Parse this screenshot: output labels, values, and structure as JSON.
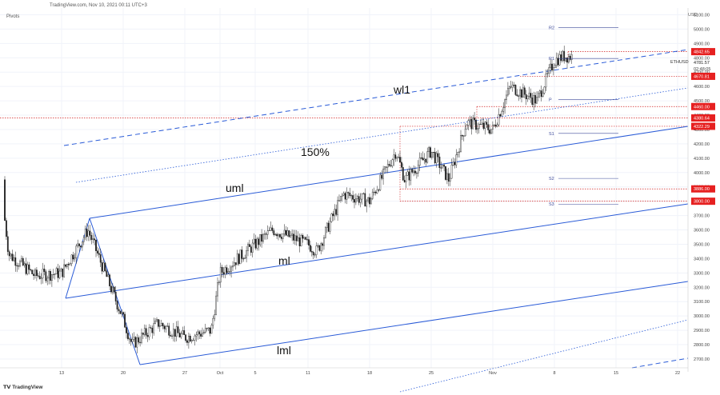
{
  "header": {
    "title": "TradingView.com, Nov 10, 2021 00:11 UTC+3",
    "indicator": "Pivots",
    "brand": "TradingView",
    "currency": "USD"
  },
  "chart_data": {
    "type": "candlestick",
    "symbol": "ETHUSD",
    "last_price": "4781.57",
    "countdown": "02:48:05",
    "ylim": [
      2650,
      5150
    ],
    "yticks": [
      2700,
      2800,
      2900,
      3000,
      3100,
      3200,
      3300,
      3400,
      3500,
      3600,
      3700,
      3800,
      3900,
      4000,
      4100,
      4200,
      4300,
      4400,
      4500,
      4600,
      4700,
      4800,
      4900,
      5000,
      5100
    ],
    "xticks": [
      "13",
      "20",
      "27",
      "Oct",
      "5",
      "11",
      "18",
      "25",
      "Nov",
      "8",
      "15",
      "22"
    ],
    "price_labels": [
      {
        "text": "4842.65",
        "value": 4842.65,
        "color": "#e62020"
      },
      {
        "text": "4670.81",
        "value": 4670.81,
        "color": "#e62020"
      },
      {
        "text": "4460.00",
        "value": 4460.0,
        "color": "#e62020"
      },
      {
        "text": "4380.64",
        "value": 4380.64,
        "color": "#e62020"
      },
      {
        "text": "4322.29",
        "value": 4322.29,
        "color": "#e62020"
      },
      {
        "text": "3886.00",
        "value": 3886.0,
        "color": "#e62020"
      },
      {
        "text": "3800.00",
        "value": 3800.0,
        "color": "#e62020"
      }
    ],
    "pivots": [
      {
        "name": "R2",
        "value": 5010
      },
      {
        "name": "R1",
        "value": 4795
      },
      {
        "name": "P",
        "value": 4508
      },
      {
        "name": "S1",
        "value": 4273
      },
      {
        "name": "S2",
        "value": 3959
      },
      {
        "name": "S3",
        "value": 3780
      }
    ],
    "annotations": [
      "wl1",
      "150%",
      "uml",
      "ml",
      "lml"
    ],
    "price_path": [
      {
        "t": "Sep 6",
        "close": 3950
      },
      {
        "t": "Sep 7",
        "close": 3430
      },
      {
        "t": "Sep 10",
        "close": 3280
      },
      {
        "t": "Sep 13",
        "close": 3300
      },
      {
        "t": "Sep 16",
        "close": 3600
      },
      {
        "t": "Sep 20",
        "close": 2980
      },
      {
        "t": "Sep 21",
        "close": 2800
      },
      {
        "t": "Sep 24",
        "close": 2950
      },
      {
        "t": "Sep 27",
        "close": 2850
      },
      {
        "t": "Sep 30",
        "close": 2900
      },
      {
        "t": "Oct 1",
        "close": 3300
      },
      {
        "t": "Oct 5",
        "close": 3500
      },
      {
        "t": "Oct 7",
        "close": 3600
      },
      {
        "t": "Oct 11",
        "close": 3500
      },
      {
        "t": "Oct 12",
        "close": 3450
      },
      {
        "t": "Oct 15",
        "close": 3850
      },
      {
        "t": "Oct 18",
        "close": 3800
      },
      {
        "t": "Oct 21",
        "close": 4150
      },
      {
        "t": "Oct 22",
        "close": 3950
      },
      {
        "t": "Oct 25",
        "close": 4150
      },
      {
        "t": "Oct 27",
        "close": 3950
      },
      {
        "t": "Oct 29",
        "close": 4350
      },
      {
        "t": "Nov 1",
        "close": 4300
      },
      {
        "t": "Nov 3",
        "close": 4600
      },
      {
        "t": "Nov 6",
        "close": 4500
      },
      {
        "t": "Nov 8",
        "close": 4780
      },
      {
        "t": "Nov 9",
        "close": 4810
      }
    ]
  }
}
